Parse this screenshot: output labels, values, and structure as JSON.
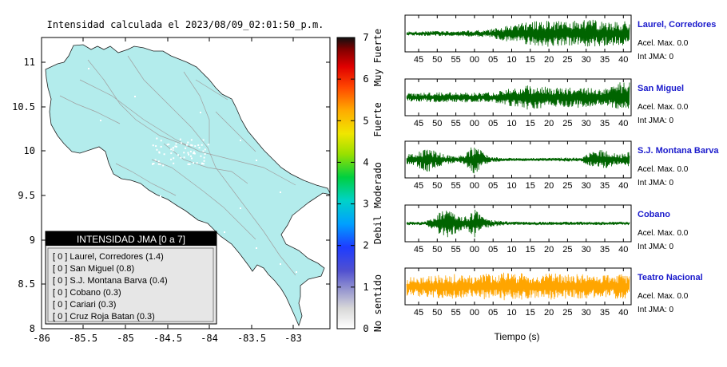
{
  "map": {
    "title": "Intensidad calculada el 2023/08/09_02:01:50_p.m.",
    "x_ticks": [
      "-86",
      "-85.5",
      "-85",
      "-84.5",
      "-84",
      "-83.5",
      "-83"
    ],
    "y_ticks": [
      "8",
      "8.5",
      "9",
      "9.5",
      "10",
      "10.5",
      "11"
    ],
    "land_color": "#b3ecec",
    "legend": {
      "title": "INTENSIDAD JMA [0 a 7]",
      "items": [
        "[ 0 ]  Laurel, Corredores (1.4)",
        "[ 0 ]  San Miguel (0.8)",
        "[ 0 ]  S.J. Montana Barva (0.4)",
        "[ 0 ]  Cobano (0.3)",
        "[ 0 ]  Cariari (0.3)",
        "[ 0 ]  Cruz Roja Batan (0.3)"
      ]
    }
  },
  "colorbar": {
    "ticks": [
      "0",
      "1",
      "2",
      "3",
      "4",
      "5",
      "6",
      "7"
    ],
    "labels": [
      "No sentido",
      "Debil",
      "Moderado",
      "Fuerte",
      "Muy Fuerte"
    ]
  },
  "chart_data": {
    "type": "line",
    "xlabel": "Tiempo (s)",
    "x_tick_labels": [
      "45",
      "50",
      "55",
      "00",
      "05",
      "10",
      "15",
      "20",
      "25",
      "30",
      "35",
      "40"
    ],
    "stations": [
      {
        "name": "Laurel, Corredores",
        "accel": "Acel. Max. 0.0",
        "jma": "Int JMA: 0",
        "color": "#006400",
        "envelope": [
          0.12,
          0.12,
          0.14,
          0.15,
          0.15,
          0.16,
          0.18,
          0.2,
          0.22,
          0.3,
          0.45,
          0.55,
          0.65,
          0.7,
          0.78,
          0.8,
          0.72,
          0.75,
          0.8,
          0.85,
          0.8,
          0.7,
          0.75,
          0.7
        ]
      },
      {
        "name": "San Miguel",
        "accel": "Acel. Max. 0.0",
        "jma": "Int JMA: 0",
        "color": "#006400",
        "envelope": [
          0.25,
          0.25,
          0.28,
          0.3,
          0.3,
          0.3,
          0.32,
          0.3,
          0.3,
          0.3,
          0.45,
          0.6,
          0.75,
          0.7,
          0.65,
          0.6,
          0.55,
          0.6,
          0.65,
          0.55,
          0.5,
          0.6,
          0.9,
          0.9
        ]
      },
      {
        "name": "S.J. Montana Barva",
        "accel": "Acel. Max. 0.0",
        "jma": "Int JMA: 0",
        "color": "#006400",
        "envelope": [
          0.3,
          0.4,
          0.8,
          0.5,
          0.3,
          0.2,
          0.3,
          0.95,
          0.35,
          0.15,
          0.1,
          0.1,
          0.1,
          0.1,
          0.1,
          0.1,
          0.12,
          0.12,
          0.1,
          0.5,
          0.6,
          0.45,
          0.3,
          0.5
        ]
      },
      {
        "name": "Cobano",
        "accel": "Acel. Max. 0.0",
        "jma": "Int JMA: 0",
        "color": "#006400",
        "envelope": [
          0.1,
          0.1,
          0.12,
          0.5,
          0.95,
          0.6,
          0.4,
          0.85,
          0.3,
          0.2,
          0.12,
          0.1,
          0.1,
          0.1,
          0.1,
          0.1,
          0.1,
          0.1,
          0.1,
          0.1,
          0.1,
          0.1,
          0.1,
          0.1
        ]
      },
      {
        "name": "Teatro Nacional",
        "accel": "Acel. Max. 0.0",
        "jma": "Int JMA: 0",
        "color": "#ffa500",
        "envelope": [
          0.55,
          0.6,
          0.65,
          0.7,
          0.7,
          0.75,
          0.7,
          0.6,
          0.8,
          0.7,
          0.85,
          0.75,
          0.8,
          0.7,
          0.75,
          0.8,
          0.75,
          0.7,
          0.75,
          0.7,
          0.75,
          0.7,
          0.75,
          0.7
        ]
      }
    ]
  }
}
